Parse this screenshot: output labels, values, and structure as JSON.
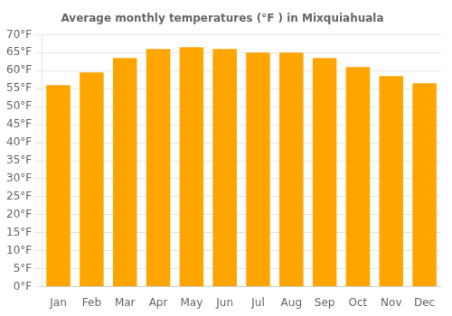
{
  "chart_data": {
    "type": "bar",
    "title": "Average monthly temperatures (°F ) in Mixquiahuala",
    "categories": [
      "Jan",
      "Feb",
      "Mar",
      "Apr",
      "May",
      "Jun",
      "Jul",
      "Aug",
      "Sep",
      "Oct",
      "Nov",
      "Dec"
    ],
    "values": [
      56,
      59.5,
      63.5,
      66,
      66.5,
      66,
      65,
      65,
      63.5,
      61,
      58.5,
      56.5
    ],
    "color": "#FFA500",
    "ylim": [
      0,
      70
    ],
    "yticks": [
      {
        "value": 0,
        "label": "0°F"
      },
      {
        "value": 5,
        "label": "5°F"
      },
      {
        "value": 10,
        "label": "10°F"
      },
      {
        "value": 15,
        "label": "15°F"
      },
      {
        "value": 20,
        "label": "20°F"
      },
      {
        "value": 25,
        "label": "25°F"
      },
      {
        "value": 30,
        "label": "30°F"
      },
      {
        "value": 35,
        "label": "35°F"
      },
      {
        "value": 40,
        "label": "40°F"
      },
      {
        "value": 45,
        "label": "45°F"
      },
      {
        "value": 50,
        "label": "50°F"
      },
      {
        "value": 55,
        "label": "55°F"
      },
      {
        "value": 60,
        "label": "60°F"
      },
      {
        "value": 65,
        "label": "65°F"
      },
      {
        "value": 70,
        "label": "70°F"
      }
    ],
    "grid": true
  }
}
